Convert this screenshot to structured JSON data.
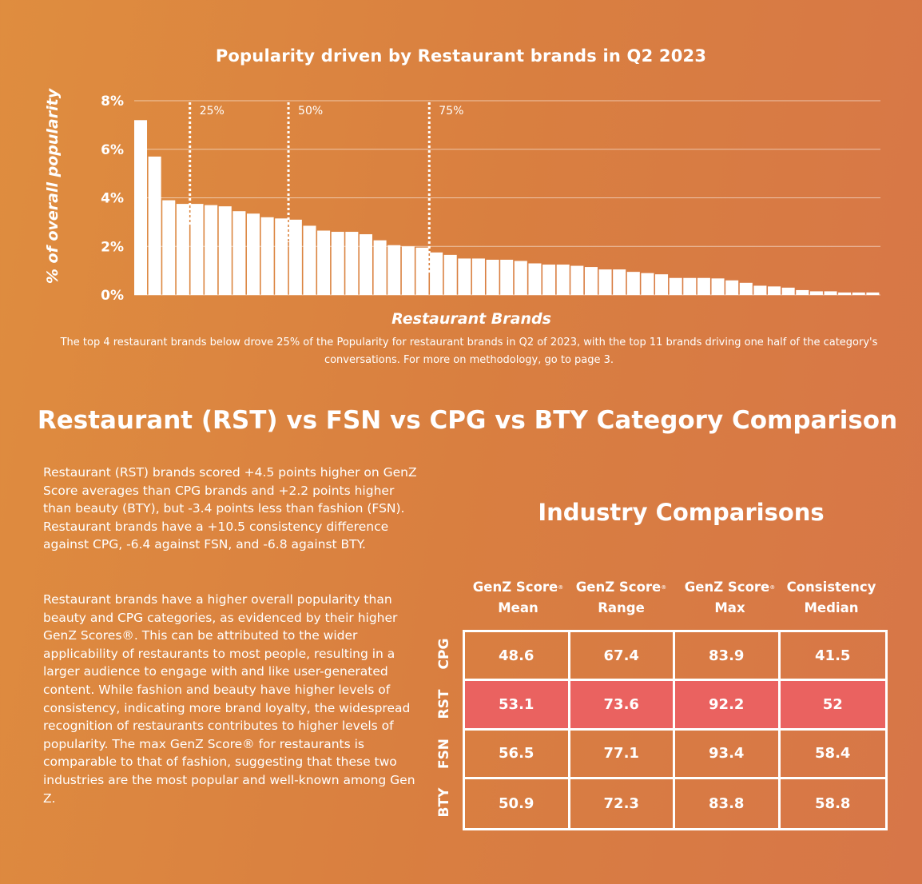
{
  "chart_data": {
    "type": "bar",
    "title": "Popularity driven by Restaurant brands in Q2 2023",
    "xlabel": "Restaurant Brands",
    "ylabel": "% of overall popularity",
    "ylim": [
      0,
      8
    ],
    "yticks": [
      "0%",
      "2%",
      "4%",
      "6%",
      "8%"
    ],
    "grid": true,
    "values": [
      7.2,
      5.7,
      3.9,
      3.75,
      3.75,
      3.7,
      3.65,
      3.45,
      3.35,
      3.2,
      3.15,
      3.1,
      2.85,
      2.65,
      2.6,
      2.6,
      2.5,
      2.25,
      2.05,
      2.0,
      1.95,
      1.75,
      1.65,
      1.5,
      1.5,
      1.45,
      1.45,
      1.4,
      1.3,
      1.25,
      1.25,
      1.2,
      1.15,
      1.05,
      1.05,
      0.95,
      0.9,
      0.85,
      0.7,
      0.7,
      0.7,
      0.68,
      0.6,
      0.5,
      0.38,
      0.35,
      0.3,
      0.2,
      0.15,
      0.15,
      0.1,
      0.1,
      0.1
    ],
    "markers": [
      {
        "label": "25%",
        "after_bar": 4
      },
      {
        "label": "50%",
        "after_bar": 11
      },
      {
        "label": "75%",
        "after_bar": 21
      }
    ],
    "caption": "The top 4 restaurant brands below drove 25% of the Popularity for restaurant brands in Q2 of 2023, with the top 11 brands driving one half of the category's conversations. For more on methodology, go to page 3."
  },
  "section_title": "Restaurant (RST) vs FSN vs CPG vs BTY Category Comparison",
  "paragraphs": [
    "Restaurant (RST) brands scored +4.5 points higher on GenZ Score averages than CPG brands and +2.2 points higher than beauty (BTY), but -3.4 points less than fashion (FSN). Restaurant brands have a +10.5 consistency difference against CPG, -6.4 against FSN, and -6.8 against BTY.",
    "Restaurant brands have a higher overall popularity than beauty and CPG categories, as evidenced by their higher GenZ Scores®. This can be attributed to the wider applicability of restaurants to most people, resulting in a larger audience to engage with and like user-generated content. While fashion and beauty have higher levels of consistency, indicating more brand loyalty, the widespread recognition of restaurants contributes to higher levels of popularity. The max GenZ Score® for restaurants is comparable to that of fashion, suggesting that these two industries are the most popular and well-known among Gen Z."
  ],
  "table": {
    "title": "Industry Comparisons",
    "columns": [
      {
        "line1": "GenZ Score",
        "sup": "®",
        "line2": "Mean"
      },
      {
        "line1": "GenZ Score",
        "sup": "®",
        "line2": "Range"
      },
      {
        "line1": "GenZ Score",
        "sup": "®",
        "line2": "Max"
      },
      {
        "line1": "Consistency",
        "sup": "",
        "line2": "Median"
      }
    ],
    "rows": [
      {
        "label": "CPG",
        "values": [
          "48.6",
          "67.4",
          "83.9",
          "41.5"
        ],
        "highlight": false
      },
      {
        "label": "RST",
        "values": [
          "53.1",
          "73.6",
          "92.2",
          "52"
        ],
        "highlight": true
      },
      {
        "label": "FSN",
        "values": [
          "56.5",
          "77.1",
          "93.4",
          "58.4"
        ],
        "highlight": false
      },
      {
        "label": "BTY",
        "values": [
          "50.9",
          "72.3",
          "83.8",
          "58.8"
        ],
        "highlight": false
      }
    ],
    "highlight_color": "#ea6260"
  }
}
